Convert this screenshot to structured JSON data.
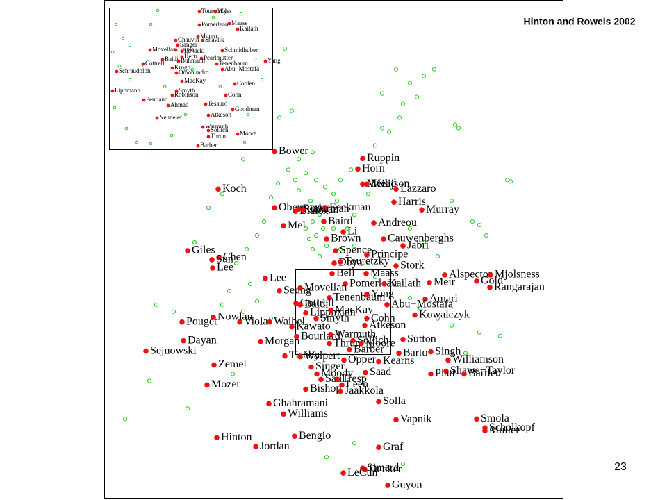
{
  "title": "Hinton and Roweis 2002",
  "page_number": "23",
  "chart_data": [
    {
      "type": "scatter",
      "xlim": [
        0,
        66
      ],
      "ylim": [
        0,
        72
      ],
      "series": [
        {
          "color": "#ee1111",
          "labels": [
            "Bower",
            "Ruppin",
            "Horn",
            "Meilijson",
            "Mead",
            "Koch",
            "Lazzaro",
            "Harris",
            "Obermayer",
            "Ruderman",
            "Eeckman",
            "Murray",
            "Bialek",
            "Cowan",
            "Mel",
            "Baird",
            "Andreou",
            "Cauwenberghs",
            "Brown",
            "Li",
            "Jabri",
            "Giles",
            "Chen",
            "Spence",
            "Principe",
            "Sun",
            "Doya",
            "Touretzky",
            "Stork",
            "Alspector",
            "Mjolsness",
            "Lee",
            "Bell",
            "Maass",
            "Gold",
            "Lee",
            "Pomerleau",
            "Kailath",
            "Meir",
            "Rangarajan",
            "Seung",
            "Movellan",
            "Tenenbaum",
            "Yang",
            "Amari",
            "Cottrell",
            "Baldi",
            "Abu−Mostafa",
            "Lippmann",
            "MacKay",
            "Nowlan",
            "Kowalczyk",
            "Pouget",
            "Viola",
            "Waibel",
            "Smyth",
            "Cohn",
            "Kawato",
            "Atkeson",
            "Bourlard",
            "Warmuth",
            "Dayan",
            "Morgan",
            "Thrun",
            "Sollich",
            "Sutton",
            "Moore",
            "Barber",
            "Barto",
            "Singh",
            "Sejnowski",
            "Tishby",
            "Wolpert",
            "Opper",
            "Kearns",
            "Williamson",
            "Shawe−Taylor",
            "Zemel",
            "Singer",
            "Moody",
            "Saad",
            "Platt",
            "Bartlett",
            "Mozer",
            "Saul",
            "Tresp",
            "Bishop",
            "Leen",
            "Jaakkola",
            "Ghahramani",
            "Solla",
            "Williams",
            "Smola",
            "Vapnik",
            "Scholkopf",
            "Muller",
            "Hinton",
            "Bengio",
            "Jordan",
            "Graf",
            "Simard",
            "Denker",
            "LeCun",
            "Guyon"
          ],
          "x": [
            24.5,
            37.2,
            36.5,
            37.2,
            37.8,
            16.4,
            42,
            41.7,
            24.5,
            28,
            31.8,
            45.7,
            27.5,
            28.6,
            25.8,
            31.6,
            38.8,
            40.2,
            32,
            34.4,
            43,
            12,
            16.5,
            33.3,
            37.8,
            15.5,
            33.1,
            34,
            42,
            49,
            55.6,
            15.6,
            32.8,
            37.7,
            53.6,
            23.2,
            34.7,
            40.3,
            46.8,
            55.5,
            25.2,
            28.2,
            32.4,
            37.8,
            46.2,
            27.6,
            28.2,
            40.7,
            29,
            32.6,
            15.7,
            44.7,
            11.2,
            19.5,
            23.8,
            30.5,
            37.8,
            27,
            37.5,
            27.7,
            32.6,
            11.4,
            22.5,
            32.4,
            35.8,
            43,
            37,
            35.3,
            42.4,
            47,
            6,
            26,
            28.2,
            34.5,
            39.5,
            49.5,
            49.2,
            15.8,
            29.8,
            30.6,
            37.6,
            47,
            51.8,
            14.8,
            31.2,
            33.6,
            29,
            34.2,
            34,
            23.7,
            39.5,
            25.8,
            53.6,
            42,
            54.8,
            54.8,
            16.2,
            27.4,
            21.8,
            39.5,
            37.2,
            37.5,
            34.4,
            40.8
          ],
          "y": [
            50.1,
            49.1,
            47.6,
            45.4,
            45.4,
            44.7,
            44.7,
            42.8,
            42,
            41.8,
            42,
            41.7,
            41.5,
            41.7,
            39.4,
            40,
            39.8,
            37.5,
            37.5,
            38.5,
            36.5,
            35.8,
            34.8,
            35.8,
            35.2,
            34.5,
            34,
            34.2,
            33.6,
            32.3,
            32.3,
            33.3,
            32.5,
            32.5,
            31.4,
            31.8,
            31,
            31,
            31.2,
            30.5,
            30,
            30.4,
            29,
            29.5,
            28.8,
            28.2,
            28,
            28,
            26.8,
            27.2,
            26.2,
            26.5,
            25.5,
            25.5,
            25.5,
            26,
            26,
            24.8,
            25,
            23.4,
            23.7,
            22.8,
            22.7,
            22.4,
            22.8,
            23,
            22.4,
            21.5,
            21,
            21.2,
            21.3,
            20.6,
            20.5,
            20,
            19.8,
            20,
            18.4,
            19.3,
            19,
            18,
            18.2,
            18,
            18,
            16.4,
            17.2,
            17.2,
            15.8,
            16.4,
            15.5,
            13.7,
            14,
            12.2,
            11.5,
            11.4,
            10.2,
            9.8,
            8.8,
            9,
            7.5,
            7.4,
            4.4,
            4.2,
            3.7,
            1.9
          ]
        },
        {
          "color": "#22cc22",
          "x": [
            30,
            31,
            30.5,
            31.5,
            30,
            29.5,
            32,
            31,
            29,
            28.5,
            29.7,
            28,
            27.5,
            29,
            30.5,
            31.8,
            33,
            33.5,
            30,
            28,
            26.5,
            25,
            24,
            23,
            22,
            20.5,
            19,
            21,
            18,
            17,
            20,
            22,
            24,
            35,
            36,
            34,
            35.5,
            39,
            40,
            41,
            42.5,
            43,
            45,
            44,
            46,
            47.5,
            50.5,
            51,
            42,
            40,
            27,
            25.2,
            24,
            26,
            33,
            34,
            36,
            38,
            39,
            44,
            45.5,
            48,
            50,
            52,
            54,
            57,
            58,
            58.5,
            54,
            10,
            7.5,
            3,
            6.5,
            12,
            18.5,
            13,
            15,
            17,
            20,
            32,
            36,
            43,
            48,
            46,
            44,
            38,
            50,
            53,
            55
          ],
          "y": [
            40,
            41,
            38,
            39,
            36,
            37.5,
            36.5,
            35,
            39,
            42,
            43,
            44.5,
            46,
            47,
            46,
            45,
            44,
            43,
            50,
            49,
            47.5,
            45.5,
            43.5,
            40,
            38,
            36,
            34,
            31,
            30,
            28,
            27,
            28.5,
            26,
            39,
            41,
            46,
            47.5,
            51,
            53.5,
            53,
            55,
            57,
            58,
            60,
            61,
            62,
            54,
            53.5,
            62,
            58.5,
            56,
            55,
            61,
            65,
            39,
            36,
            36.5,
            34,
            32,
            29,
            27.5,
            26,
            25,
            21,
            24,
            23.5,
            46,
            45.8,
            39.5,
            27,
            28,
            11.5,
            17,
            13,
            18,
            37,
            42,
            44,
            49,
            6,
            8,
            5,
            35,
            37,
            39,
            44,
            43,
            40,
            38
          ]
        }
      ]
    },
    {
      "type": "scatter",
      "xlim": [
        0,
        23.5
      ],
      "ylim": [
        0,
        20.4
      ],
      "series": [
        {
          "color": "#ee1111",
          "labels": [
            "Touretzky",
            "Wiles",
            "Pomerleau",
            "Maass",
            "Kailath",
            "Munro",
            "Chauvin",
            "Shavlik",
            "Sanger",
            "Movellan",
            "Baluja",
            "Lewicki",
            "Schmidhuber",
            "Yang",
            "Hertz",
            "Pearlmutter",
            "Cottrell",
            "Baldi",
            "Buhmann",
            "Tenenbaum",
            "Krogh",
            "Omohundro",
            "Abu−Mostafa",
            "Schraudolph",
            "MacKay",
            "Coolen",
            "Lippmann",
            "Smyth",
            "Robinson",
            "Cohn",
            "Pentland",
            "Ahmad",
            "Tesauro",
            "Goodman",
            "Neuneier",
            "Atkeson",
            "Warmuth",
            "Sollich",
            "Moore",
            "Thrun",
            "Barber"
          ],
          "x": [
            13,
            15.3,
            13,
            17.3,
            18.5,
            12.8,
            9.6,
            13.5,
            9.9,
            5.9,
            9.6,
            10.5,
            16.3,
            22.5,
            10.5,
            13.3,
            4.9,
            7.7,
            10,
            15.5,
            9.1,
            9.7,
            16.3,
            1.1,
            10.5,
            18.1,
            0.5,
            9.7,
            9.1,
            16.8,
            5,
            8.5,
            13.9,
            17.8,
            6.9,
            14.3,
            13.5,
            14.3,
            18.5,
            14.3,
            12.8
          ],
          "y": [
            19.8,
            19.8,
            17.9,
            18.1,
            17.3,
            16.2,
            15.7,
            15.7,
            15,
            14.3,
            14.3,
            14.1,
            14.2,
            12.7,
            13.3,
            13.1,
            12.3,
            12.9,
            12.7,
            12.3,
            11.7,
            11,
            11.5,
            11.2,
            9.8,
            9.4,
            8.4,
            8.4,
            7.8,
            7.8,
            7.1,
            6.3,
            6.5,
            5.7,
            4.5,
            4.9,
            3.2,
            2.7,
            2.2,
            1.8,
            0.5
          ]
        },
        {
          "color": "#22cc22",
          "x": [
            1,
            2,
            0.5,
            1.5,
            3,
            0.8,
            2.5,
            4,
            6,
            7,
            13.5,
            15,
            19,
            21,
            22,
            20,
            19.5,
            6,
            9,
            11,
            5,
            8,
            12,
            16,
            3
          ],
          "y": [
            18,
            16,
            14,
            12,
            10,
            6,
            3,
            1,
            18,
            20,
            20.2,
            19,
            19.5,
            13,
            10,
            5,
            1,
            0.8,
            2,
            5,
            12,
            9,
            11.5,
            9,
            15
          ]
        }
      ]
    }
  ]
}
